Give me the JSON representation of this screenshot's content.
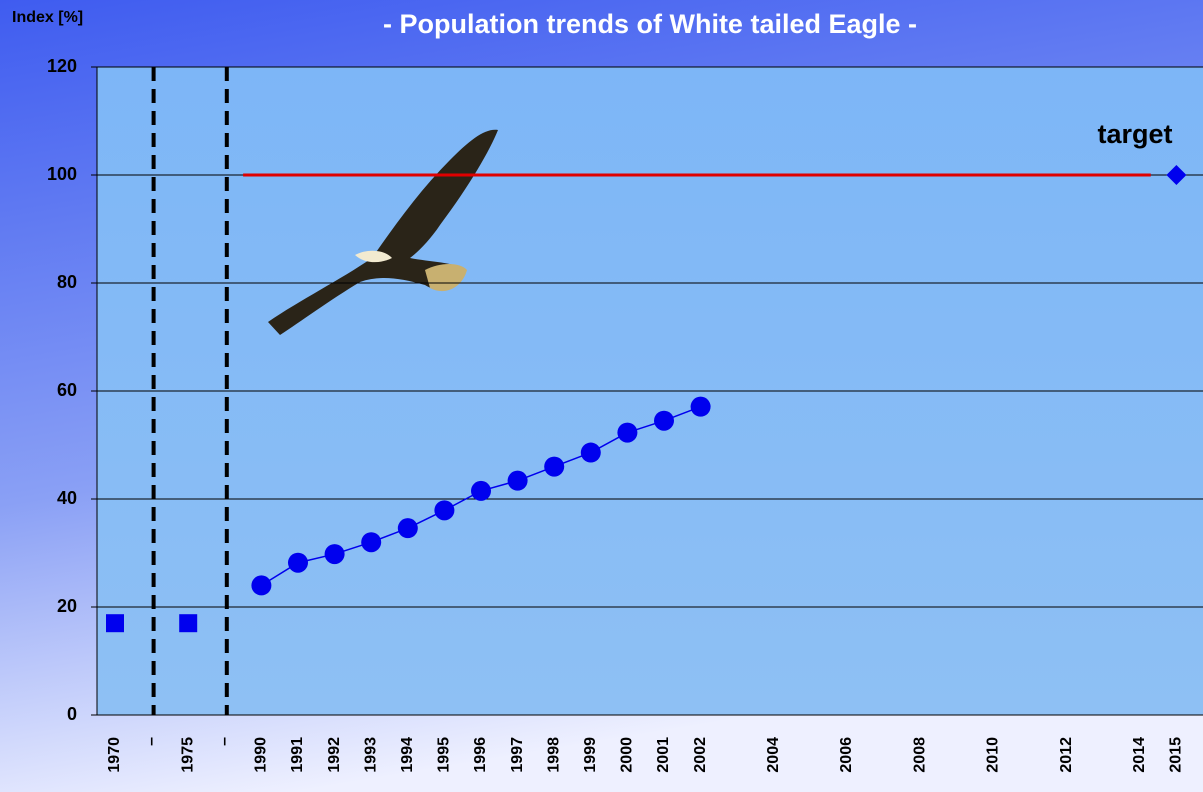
{
  "chart_data": {
    "type": "line",
    "title": "- Population trends of White tailed Eagle -",
    "y_label": "Index [%]",
    "annotation": "target",
    "categories": [
      "1970",
      "–",
      "1975",
      "–",
      "1990",
      "1991",
      "1992",
      "1993",
      "1994",
      "1995",
      "1996",
      "1997",
      "1998",
      "1999",
      "2000",
      "2001",
      "2002",
      null,
      "2004",
      null,
      "2006",
      null,
      "2008",
      null,
      "2010",
      null,
      "2012",
      null,
      "2014",
      "2015"
    ],
    "series": [
      {
        "marker": "square",
        "color": "#0000ee",
        "values": [
          17,
          null,
          17,
          null,
          null,
          null,
          null,
          null,
          null,
          null,
          null,
          null,
          null,
          null,
          null,
          null,
          null,
          null,
          null,
          null,
          null,
          null,
          null,
          null,
          null,
          null,
          null,
          null,
          null,
          null
        ]
      },
      {
        "marker": "circle",
        "color": "#0000ee",
        "values": [
          null,
          null,
          null,
          null,
          24,
          28.2,
          29.8,
          32,
          34.6,
          37.9,
          41.5,
          43.4,
          46,
          48.6,
          52.3,
          54.5,
          57.1,
          null,
          null,
          null,
          null,
          null,
          null,
          null,
          null,
          null,
          null,
          null,
          null,
          null
        ]
      },
      {
        "marker": "diamond",
        "color": "#0000ee",
        "values": [
          null,
          null,
          null,
          null,
          null,
          null,
          null,
          null,
          null,
          null,
          null,
          null,
          null,
          null,
          null,
          null,
          null,
          null,
          null,
          null,
          null,
          null,
          null,
          null,
          null,
          null,
          null,
          null,
          null,
          100
        ]
      }
    ],
    "target_line": {
      "value": 100,
      "color": "#e00000"
    },
    "ylim": [
      0,
      120
    ],
    "yticks": [
      0,
      20,
      40,
      60,
      80,
      100,
      120
    ],
    "grid": true
  }
}
